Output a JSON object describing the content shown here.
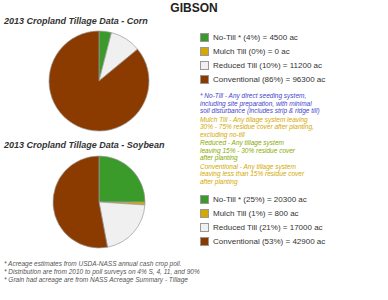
{
  "chart_data": [
    {
      "type": "pie",
      "title": "GIBSON",
      "subtitle": "2013 Cropland Tillage Data - Corn",
      "categories": [
        "No-Till * (4%) = 4500 ac",
        "Mulch Till (0%) = 0 ac",
        "Reduced Till (10%) = 11200 ac",
        "Conventional (86%) = 96300 ac"
      ],
      "values": [
        4500,
        0.001,
        11200,
        96300
      ],
      "colors": [
        "#3a9a2a",
        "#d4a800",
        "#f0f0f0",
        "#8b3a00"
      ],
      "legend": "right",
      "annotations": [
        {
          "text": "* No-Till - Any direct seeding system,\nincluding site preparation, with minimal\nsoil disturbance (includes strip & ridge till)",
          "color": "#4444cc"
        },
        {
          "text": "Mulch Till - Any tillage system leaving\n30% - 75% residue cover after planting,\nexcluding no-till",
          "color": "#d4a800"
        },
        {
          "text": "Reduced - Any tillage system\nleaving 15% - 30% residue cover\nafter planting",
          "color": "#88aa00"
        },
        {
          "text": "Conventional - Any tillage system\nleaving less than 15% residue cover\nafter planting",
          "color": "#d4a800"
        }
      ]
    },
    {
      "type": "pie",
      "subtitle": "2013 Cropland Tillage Data - Soybean",
      "categories": [
        "No-Till * (25%) = 20300 ac",
        "Mulch Till (1%) = 800 ac",
        "Reduced Till (21%) = 17000 ac",
        "Conventional (53%) = 42900 ac"
      ],
      "values": [
        20300,
        800,
        17000,
        42900
      ],
      "colors": [
        "#3a9a2a",
        "#d4a800",
        "#f0f0f0",
        "#8b3a00"
      ],
      "legend": "right",
      "annotations": [
        "* Acreage estimates from USDA-NASS annual cash crop poll.",
        "* Distribution are from 2010 to poll surveys on 4% S, 4, 11, and 90%",
        "* Grain had acreage are from NASS Acreage Summary - Tillage"
      ]
    }
  ]
}
